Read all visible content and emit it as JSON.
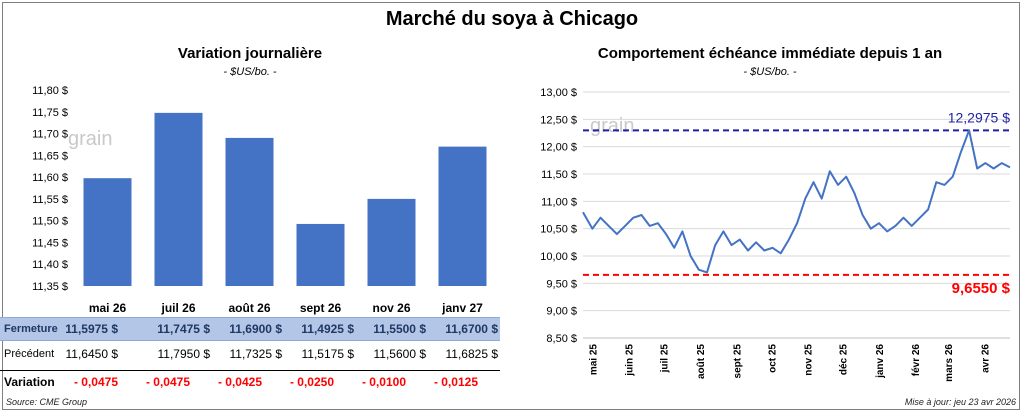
{
  "header": {
    "title": "Marché du soya à Chicago"
  },
  "footer": {
    "source": "Source: CME Group",
    "updated": "Mise à jour: jeu 23 avr 2026"
  },
  "watermark": "grain",
  "chart_data": [
    {
      "type": "bar",
      "title": "Variation journalière",
      "unit": "- $US/bo. -",
      "categories": [
        "mai 26",
        "juil 26",
        "août 26",
        "sept 26",
        "nov 26",
        "janv 27"
      ],
      "values": [
        11.5975,
        11.7475,
        11.69,
        11.4925,
        11.55,
        11.67
      ],
      "ylim": [
        11.35,
        11.8
      ],
      "yticks": [
        "11,35 $",
        "11,40 $",
        "11,45 $",
        "11,50 $",
        "11,55 $",
        "11,60 $",
        "11,65 $",
        "11,70 $",
        "11,75 $",
        "11,80 $"
      ],
      "color": "#4472c4",
      "grid": false
    },
    {
      "type": "line",
      "title": "Comportement échéance immédiate depuis 1 an",
      "unit": "- $US/bo. -",
      "x": [
        "2025-04-23",
        "2025-05-01",
        "2025-05-08",
        "2025-05-15",
        "2025-05-22",
        "2025-05-29",
        "2025-06-05",
        "2025-06-12",
        "2025-06-19",
        "2025-06-26",
        "2025-07-03",
        "2025-07-10",
        "2025-07-17",
        "2025-07-24",
        "2025-07-31",
        "2025-08-07",
        "2025-08-14",
        "2025-08-21",
        "2025-08-28",
        "2025-09-04",
        "2025-09-11",
        "2025-09-18",
        "2025-09-25",
        "2025-10-02",
        "2025-10-09",
        "2025-10-16",
        "2025-10-23",
        "2025-10-30",
        "2025-11-06",
        "2025-11-13",
        "2025-11-20",
        "2025-11-27",
        "2025-12-04",
        "2025-12-11",
        "2025-12-18",
        "2025-12-25",
        "2026-01-01",
        "2026-01-08",
        "2026-01-15",
        "2026-01-22",
        "2026-01-29",
        "2026-02-05",
        "2026-02-12",
        "2026-02-19",
        "2026-02-26",
        "2026-03-05",
        "2026-03-12",
        "2026-03-19",
        "2026-03-26",
        "2026-04-02",
        "2026-04-09",
        "2026-04-16",
        "2026-04-23"
      ],
      "series": [
        {
          "values": [
            10.8,
            10.5,
            10.7,
            10.55,
            10.4,
            10.55,
            10.7,
            10.75,
            10.55,
            10.6,
            10.4,
            10.15,
            10.45,
            10.0,
            9.75,
            9.7,
            10.2,
            10.45,
            10.2,
            10.3,
            10.1,
            10.25,
            10.1,
            10.15,
            10.05,
            10.3,
            10.6,
            11.05,
            11.35,
            11.05,
            11.55,
            11.3,
            11.45,
            11.15,
            10.75,
            10.5,
            10.6,
            10.45,
            10.55,
            10.7,
            10.55,
            10.7,
            10.85,
            11.35,
            11.3,
            11.45,
            11.9,
            12.3,
            11.6,
            11.7,
            11.6,
            11.7,
            11.62
          ]
        }
      ],
      "reference_lines": [
        {
          "value": 12.2975,
          "label": "12,2975 $",
          "color": "#1f1fa8"
        },
        {
          "value": 9.655,
          "label": "9,6550 $",
          "color": "#ff0000"
        }
      ],
      "xticks": [
        "mai 25",
        "juin 25",
        "juil 25",
        "août 25",
        "sept 25",
        "oct 25",
        "nov 25",
        "déc 25",
        "janv 26",
        "févr 26",
        "mars 26",
        "avr 26"
      ],
      "ylim": [
        8.5,
        13.0
      ],
      "yticks": [
        "8,50 $",
        "9,00 $",
        "9,50 $",
        "10,00 $",
        "10,50 $",
        "11,00 $",
        "11,50 $",
        "12,00 $",
        "12,50 $",
        "13,00 $"
      ],
      "color": "#4472c4",
      "grid": true
    }
  ],
  "table": {
    "rows": [
      {
        "label": "Fermeture",
        "values": [
          "11,5975  $",
          "11,7475  $",
          "11,6900  $",
          "11,4925  $",
          "11,5500  $",
          "11,6700  $"
        ]
      },
      {
        "label": "Précédent",
        "values": [
          "11,6450  $",
          "11,7950  $",
          "11,7325  $",
          "11,5175  $",
          "11,5600  $",
          "11,6825  $"
        ]
      },
      {
        "label": "Variation",
        "values": [
          "- 0,0475",
          "- 0,0475",
          "- 0,0425",
          "- 0,0250",
          "- 0,0100",
          "- 0,0125"
        ]
      }
    ]
  }
}
